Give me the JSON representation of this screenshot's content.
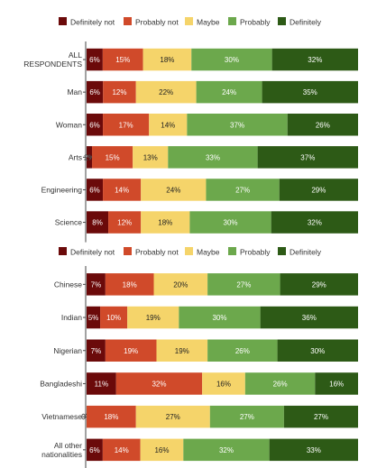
{
  "colors": {
    "Definitely not": "#6b0a0a",
    "Probably not": "#d04a2a",
    "Maybe": "#f5d46a",
    "Probably": "#6ca84c",
    "Definitely": "#2d5a16"
  },
  "chart_data": [
    {
      "type": "bar",
      "orientation": "horizontal",
      "stacked": true,
      "normalized": true,
      "legend_position": "top",
      "categories": [
        "ALL\nRESPONDENTS",
        "Man",
        "Woman",
        "Arts",
        "Engineering",
        "Science"
      ],
      "series": [
        {
          "name": "Definitely not",
          "values": [
            6,
            6,
            6,
            2,
            6,
            8
          ]
        },
        {
          "name": "Probably not",
          "values": [
            15,
            12,
            17,
            15,
            14,
            12
          ]
        },
        {
          "name": "Maybe",
          "values": [
            18,
            22,
            14,
            13,
            24,
            18
          ]
        },
        {
          "name": "Probably",
          "values": [
            30,
            24,
            37,
            33,
            27,
            30
          ]
        },
        {
          "name": "Definitely",
          "values": [
            32,
            35,
            26,
            37,
            29,
            32
          ]
        }
      ]
    },
    {
      "type": "bar",
      "orientation": "horizontal",
      "stacked": true,
      "normalized": true,
      "legend_position": "top",
      "categories": [
        "Chinese",
        "Indian",
        "Nigerian",
        "Bangladeshi",
        "Vietnamese",
        "All other\nnationalities"
      ],
      "series": [
        {
          "name": "Definitely not",
          "values": [
            7,
            5,
            7,
            11,
            0,
            6
          ]
        },
        {
          "name": "Probably not",
          "values": [
            18,
            10,
            19,
            32,
            18,
            14
          ]
        },
        {
          "name": "Maybe",
          "values": [
            20,
            19,
            19,
            16,
            27,
            16
          ]
        },
        {
          "name": "Probably",
          "values": [
            27,
            30,
            26,
            26,
            27,
            32
          ]
        },
        {
          "name": "Definitely",
          "values": [
            29,
            36,
            30,
            16,
            27,
            33
          ]
        }
      ]
    }
  ]
}
